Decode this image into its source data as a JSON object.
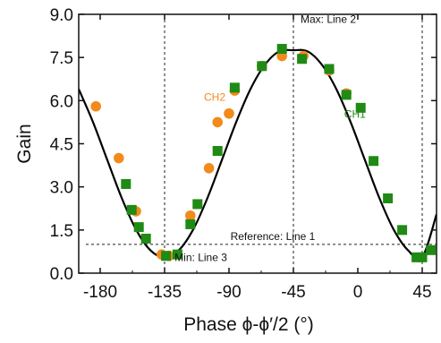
{
  "chart_data": {
    "type": "scatter",
    "title": "",
    "xlabel": "Phase ϕ-ϕ′/2 (°)",
    "ylabel": "Gain",
    "xlim": [
      -195,
      55
    ],
    "ylim": [
      0,
      9.0
    ],
    "xticks": [
      -180,
      -135,
      -90,
      -45,
      0,
      45
    ],
    "xtick_labels": [
      "-180",
      "-135",
      "-90",
      "-45",
      "0",
      "45"
    ],
    "yticks": [
      0,
      1.5,
      3.0,
      4.5,
      6.0,
      7.5,
      9.0
    ],
    "ytick_labels": [
      "0.0",
      "1.5",
      "3.0",
      "4.5",
      "6.0",
      "7.5",
      "9.0"
    ],
    "grid": false,
    "series": [
      {
        "name": "CH2",
        "marker": "circle",
        "color": "#f28a1c",
        "points": [
          [
            -183,
            5.8
          ],
          [
            -167,
            4.0
          ],
          [
            -155,
            2.15
          ],
          [
            -137,
            0.65
          ],
          [
            -132,
            0.6
          ],
          [
            -117,
            2.0
          ],
          [
            -104,
            3.65
          ],
          [
            -98,
            5.25
          ],
          [
            -90,
            5.55
          ],
          [
            -86,
            6.35
          ],
          [
            -67,
            7.2
          ],
          [
            -53,
            7.55
          ],
          [
            -38,
            7.55
          ],
          [
            -20,
            7.05
          ],
          [
            -8,
            6.25
          ]
        ]
      },
      {
        "name": "CH1",
        "marker": "square",
        "color": "#1f8a14",
        "points": [
          [
            -162,
            3.1
          ],
          [
            -158,
            2.2
          ],
          [
            -153,
            1.6
          ],
          [
            -148,
            1.2
          ],
          [
            -134,
            0.6
          ],
          [
            -126,
            0.65
          ],
          [
            -117,
            1.7
          ],
          [
            -112,
            2.4
          ],
          [
            -98,
            4.25
          ],
          [
            -86,
            6.45
          ],
          [
            -67,
            7.2
          ],
          [
            -53,
            7.8
          ],
          [
            -39,
            7.45
          ],
          [
            -20,
            7.1
          ],
          [
            -8,
            6.2
          ],
          [
            2,
            5.75
          ],
          [
            11,
            3.9
          ],
          [
            21,
            2.6
          ],
          [
            31,
            1.5
          ],
          [
            41,
            0.55
          ],
          [
            45,
            0.55
          ],
          [
            51,
            0.8
          ]
        ]
      }
    ],
    "fit_curve": {
      "color": "#000000",
      "model": "7.2 - 7.2*cos((phase + 45) * pi / 90)/2 ... sinusoidal fit",
      "points": [
        [
          -195,
          6.4
        ],
        [
          -185,
          5.25
        ],
        [
          -175,
          3.93
        ],
        [
          -165,
          2.62
        ],
        [
          -155,
          1.52
        ],
        [
          -145,
          0.8
        ],
        [
          -135,
          0.55
        ],
        [
          -125,
          0.8
        ],
        [
          -115,
          1.52
        ],
        [
          -105,
          2.62
        ],
        [
          -95,
          3.93
        ],
        [
          -85,
          5.25
        ],
        [
          -75,
          6.4
        ],
        [
          -65,
          7.24
        ],
        [
          -55,
          7.71
        ],
        [
          -45,
          7.75
        ],
        [
          -35,
          7.71
        ],
        [
          -25,
          7.24
        ],
        [
          -15,
          6.4
        ],
        [
          -5,
          5.25
        ],
        [
          5,
          3.93
        ],
        [
          15,
          2.62
        ],
        [
          25,
          1.52
        ],
        [
          35,
          0.8
        ],
        [
          45,
          0.55
        ],
        [
          55,
          2.05
        ]
      ]
    },
    "reference_lines": [
      {
        "orientation": "horizontal",
        "value": 1.0,
        "label": "Reference: Line 1"
      },
      {
        "orientation": "vertical",
        "value": -45,
        "label": "Max: Line 2"
      },
      {
        "orientation": "vertical",
        "value": -135,
        "label": "Min: Line 3"
      },
      {
        "orientation": "vertical",
        "value": 45,
        "label": ""
      }
    ],
    "annotations": [
      {
        "text": "CH2",
        "x": -100,
        "y": 6.0,
        "color": "#f28a1c"
      },
      {
        "text": "CH1",
        "x": -2,
        "y": 5.4,
        "color": "#1f8a14"
      }
    ]
  }
}
